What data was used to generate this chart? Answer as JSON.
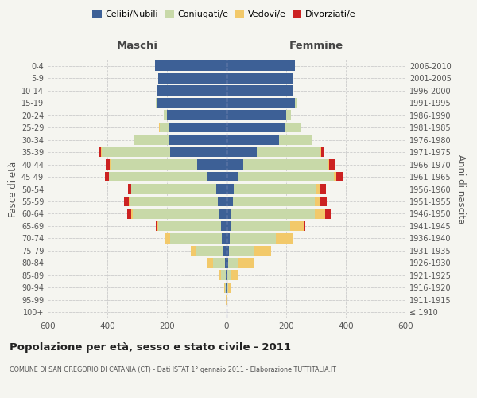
{
  "age_groups": [
    "100+",
    "95-99",
    "90-94",
    "85-89",
    "80-84",
    "75-79",
    "70-74",
    "65-69",
    "60-64",
    "55-59",
    "50-54",
    "45-49",
    "40-44",
    "35-39",
    "30-34",
    "25-29",
    "20-24",
    "15-19",
    "10-14",
    "5-9",
    "0-4"
  ],
  "birth_years": [
    "≤ 1910",
    "1911-1915",
    "1916-1920",
    "1921-1925",
    "1926-1930",
    "1931-1935",
    "1936-1940",
    "1941-1945",
    "1946-1950",
    "1951-1955",
    "1956-1960",
    "1961-1965",
    "1966-1970",
    "1971-1975",
    "1976-1980",
    "1981-1985",
    "1986-1990",
    "1991-1995",
    "1996-2000",
    "2001-2005",
    "2006-2010"
  ],
  "male_celibi": [
    0,
    0,
    2,
    3,
    5,
    10,
    15,
    20,
    25,
    30,
    35,
    65,
    100,
    190,
    195,
    195,
    200,
    235,
    235,
    230,
    240
  ],
  "male_coniugati": [
    0,
    1,
    3,
    15,
    40,
    95,
    175,
    210,
    290,
    295,
    285,
    330,
    290,
    230,
    115,
    30,
    10,
    3,
    1,
    0,
    0
  ],
  "male_vedovi": [
    0,
    1,
    4,
    10,
    20,
    15,
    15,
    5,
    4,
    2,
    1,
    1,
    1,
    1,
    0,
    1,
    1,
    0,
    0,
    0,
    0
  ],
  "male_divorziati": [
    0,
    0,
    0,
    0,
    0,
    0,
    2,
    3,
    15,
    18,
    10,
    13,
    14,
    5,
    0,
    0,
    0,
    0,
    0,
    0,
    0
  ],
  "female_celibi": [
    0,
    0,
    2,
    3,
    5,
    8,
    10,
    12,
    15,
    20,
    25,
    40,
    55,
    100,
    175,
    195,
    200,
    230,
    220,
    220,
    230
  ],
  "female_coniugati": [
    0,
    1,
    3,
    12,
    35,
    85,
    155,
    200,
    280,
    275,
    275,
    320,
    285,
    215,
    110,
    55,
    15,
    4,
    1,
    0,
    0
  ],
  "female_vedovi": [
    1,
    2,
    8,
    25,
    50,
    55,
    55,
    50,
    35,
    20,
    12,
    8,
    5,
    3,
    1,
    1,
    0,
    0,
    0,
    0,
    0
  ],
  "female_divorziati": [
    0,
    0,
    0,
    0,
    0,
    0,
    2,
    3,
    18,
    20,
    20,
    20,
    18,
    8,
    2,
    0,
    0,
    0,
    0,
    0,
    0
  ],
  "color_celibi": "#3d6096",
  "color_coniugati": "#c8d9a8",
  "color_vedovi": "#f2c96a",
  "color_divorziati": "#cc2222",
  "title": "Popolazione per età, sesso e stato civile - 2011",
  "subtitle": "COMUNE DI SAN GREGORIO DI CATANIA (CT) - Dati ISTAT 1° gennaio 2011 - Elaborazione TUTTITALIA.IT",
  "ylabel_left": "Fasce di età",
  "ylabel_right": "Anni di nascita",
  "xlim": 600,
  "bg_color": "#f5f5f0",
  "grid_color": "#cccccc"
}
